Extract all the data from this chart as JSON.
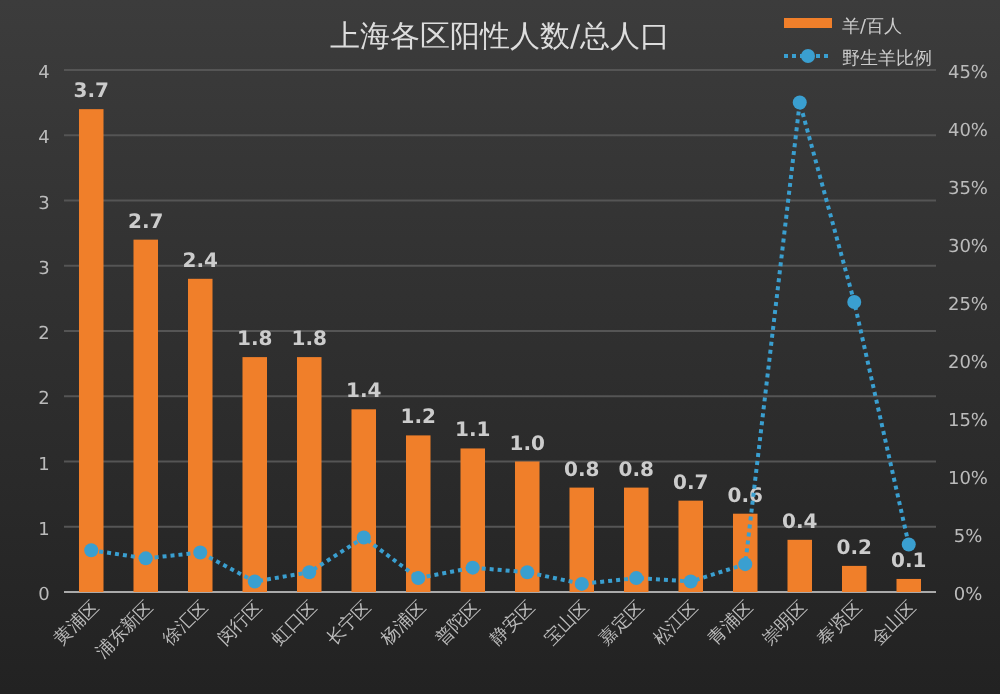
{
  "chart_data": {
    "type": "bar",
    "title": "上海各区阳性人数/总人口",
    "categories": [
      "黄浦区",
      "浦东新区",
      "徐汇区",
      "闵行区",
      "虹口区",
      "长宁区",
      "杨浦区",
      "普陀区",
      "静安区",
      "宝山区",
      "嘉定区",
      "松江区",
      "青浦区",
      "崇明区",
      "奉贤区",
      "金山区"
    ],
    "series": [
      {
        "name": "羊/百人",
        "color": "#f07f2a",
        "values": [
          3.7,
          2.7,
          2.4,
          1.8,
          1.8,
          1.4,
          1.2,
          1.1,
          1.0,
          0.8,
          0.8,
          0.7,
          0.6,
          0.4,
          0.2,
          0.1
        ],
        "value_labels": [
          "3.7",
          "2.7",
          "2.4",
          "1.8",
          "1.8",
          "1.4",
          "1.2",
          "1.1",
          "1.0",
          "0.8",
          "0.8",
          "0.7",
          "0.6",
          "0.4",
          "0.2",
          "0.1"
        ]
      },
      {
        "type": "line",
        "axis": "y2",
        "name": "野生羊比例",
        "color": "#3a9fd0",
        "marker": "circle",
        "line_style": "dotted",
        "values": [
          3.6,
          2.9,
          3.4,
          0.9,
          1.7,
          4.7,
          1.2,
          2.1,
          1.7,
          0.7,
          1.2,
          0.9,
          2.4,
          42.2,
          25,
          4.1
        ]
      }
    ],
    "ylim": [
      0,
      4
    ],
    "yticks": [
      0,
      {
        "value": 0.5,
        "label": "1"
      },
      1,
      {
        "value": 1.5,
        "label": "2"
      },
      2,
      {
        "value": 2.5,
        "label": "3"
      },
      3,
      {
        "value": 3.5,
        "label": "4"
      },
      4
    ],
    "y2lim": [
      0,
      45
    ],
    "y2ticks": [
      {
        "value": 0,
        "label": "0%"
      },
      {
        "value": 5,
        "label": "5%"
      },
      {
        "value": 10,
        "label": "10%"
      },
      {
        "value": 15,
        "label": "15%"
      },
      {
        "value": 20,
        "label": "20%"
      },
      {
        "value": 25,
        "label": "25%"
      },
      {
        "value": 30,
        "label": "30%"
      },
      {
        "value": 35,
        "label": "35%"
      },
      {
        "value": 40,
        "label": "40%"
      },
      {
        "value": 45,
        "label": "45%"
      }
    ],
    "grid": "y",
    "legend": "top right"
  }
}
